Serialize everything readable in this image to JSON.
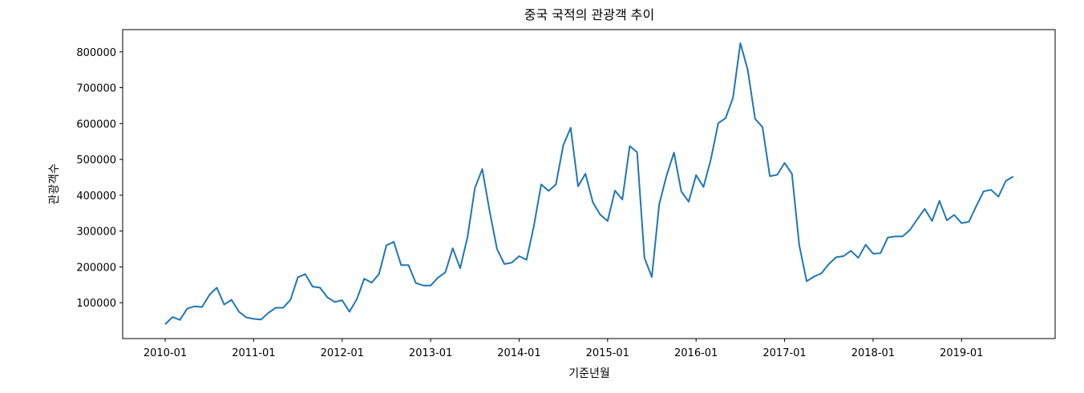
{
  "chart_data": {
    "type": "line",
    "title": "중국 국적의 관광객 추이",
    "xlabel": "기준년월",
    "ylabel": "관광객수",
    "x_start": "2010-01",
    "x_ticks": [
      "2010-01",
      "2011-01",
      "2012-01",
      "2013-01",
      "2014-01",
      "2015-01",
      "2016-01",
      "2017-01",
      "2018-01",
      "2019-01"
    ],
    "y_ticks": [
      "100000",
      "200000",
      "300000",
      "400000",
      "500000",
      "600000",
      "700000",
      "800000"
    ],
    "ylim": [
      0,
      862000
    ],
    "grid": false,
    "line_color": "#1f77b4",
    "series": [
      {
        "values": [
          40000,
          60000,
          52000,
          84000,
          90000,
          88000,
          122000,
          142000,
          95000,
          108000,
          75000,
          59000,
          55000,
          53000,
          72000,
          86000,
          86000,
          108000,
          171000,
          180000,
          145000,
          142000,
          115000,
          102000,
          107000,
          75000,
          110000,
          167000,
          156000,
          180000,
          260000,
          270000,
          205000,
          205000,
          155000,
          148000,
          148000,
          170000,
          185000,
          252000,
          196000,
          283000,
          420000,
          473000,
          355000,
          250000,
          208000,
          212000,
          230000,
          220000,
          313000,
          430000,
          412000,
          430000,
          540000,
          588000,
          425000,
          460000,
          380000,
          346000,
          328000,
          413000,
          388000,
          537000,
          520000,
          225000,
          172000,
          375000,
          455000,
          519000,
          410000,
          382000,
          456000,
          423000,
          500000,
          601000,
          615000,
          672000,
          824000,
          750000,
          613000,
          590000,
          453000,
          457000,
          490000,
          460000,
          260000,
          160000,
          173000,
          182000,
          208000,
          227000,
          230000,
          245000,
          225000,
          262000,
          237000,
          238000,
          282000,
          285000,
          285000,
          303000,
          333000,
          362000,
          328000,
          384000,
          330000,
          345000,
          322000,
          326000,
          370000,
          411000,
          415000,
          396000,
          440000,
          452000
        ]
      }
    ]
  }
}
